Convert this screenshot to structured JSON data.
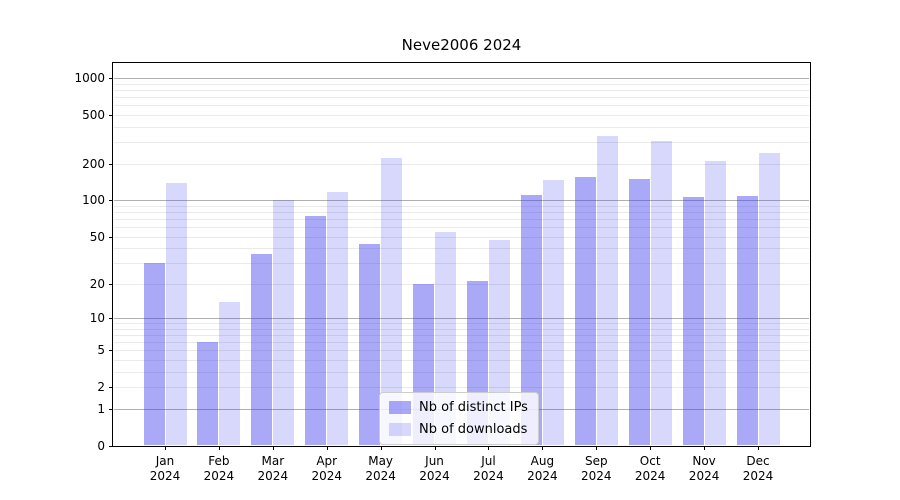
{
  "chart_data": {
    "type": "bar",
    "title": "Neve2006 2024",
    "scale": "log1p",
    "grid": true,
    "legend_position": "lower center",
    "categories": [
      "Jan 2024",
      "Feb 2024",
      "Mar 2024",
      "Apr 2024",
      "May 2024",
      "Jun 2024",
      "Jul 2024",
      "Aug 2024",
      "Sep 2024",
      "Oct 2024",
      "Nov 2024",
      "Dec 2024"
    ],
    "series": [
      {
        "name": "Nb of distinct IPs",
        "values": [
          30,
          6,
          36,
          74,
          43,
          20,
          21,
          110,
          156,
          149,
          107,
          108
        ]
      },
      {
        "name": "Nb of downloads",
        "values": [
          140,
          14,
          100,
          117,
          221,
          55,
          47,
          146,
          339,
          305,
          210,
          243
        ]
      }
    ],
    "yticks": [
      1000,
      500,
      200,
      100,
      50,
      20,
      10,
      5,
      2,
      1,
      0
    ],
    "grid_major": [
      1,
      10,
      100,
      1000
    ],
    "grid_minor": [
      2,
      3,
      4,
      5,
      6,
      7,
      8,
      9,
      20,
      30,
      40,
      50,
      60,
      70,
      80,
      90,
      200,
      300,
      400,
      500,
      600,
      700,
      800,
      900
    ],
    "ylim": [
      0,
      1336
    ]
  },
  "legend": {
    "items": [
      {
        "label": "Nb of distinct IPs"
      },
      {
        "label": "Nb of downloads"
      }
    ]
  },
  "colors": {
    "bar_ips": "rgba(60,60,240,0.44)",
    "bar_downloads": "rgba(60,60,240,0.2)",
    "grid_major": "#b0b0b0",
    "grid_minor": "#e9e9e9",
    "axis": "#000000",
    "background": "#ffffff"
  }
}
